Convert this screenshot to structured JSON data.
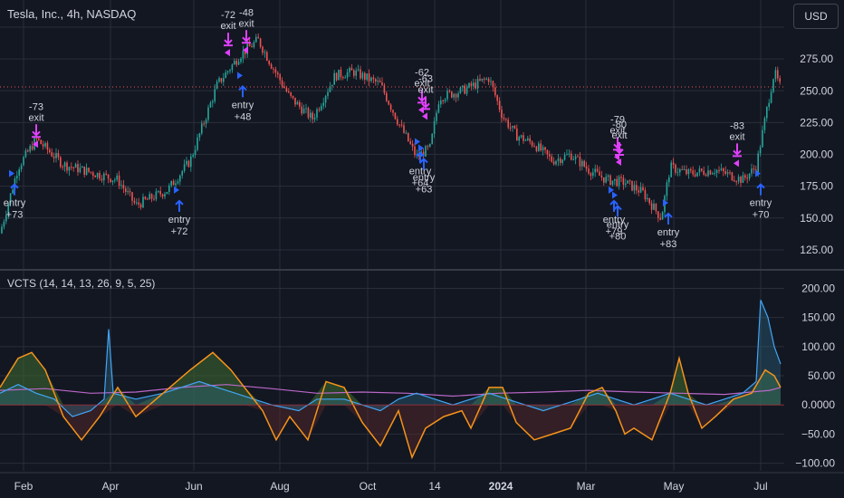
{
  "header": {
    "title": "Tesla, Inc., 4h, NASDAQ",
    "currency": "USD"
  },
  "indicator": {
    "title": "VCTS (14, 14, 13, 26, 9, 5, 25)"
  },
  "chart_data": [
    {
      "type": "candlestick",
      "ylim": [
        115,
        300
      ],
      "y_ticks": [
        125,
        150,
        175,
        200,
        225,
        250,
        275
      ],
      "current_price_line": 253,
      "x_ticks": [
        "Feb",
        "Apr",
        "Jun",
        "Aug",
        "Oct",
        "14",
        "2024",
        "Mar",
        "May",
        "Jul"
      ],
      "price_path": [
        [
          0,
          138
        ],
        [
          20,
          190
        ],
        [
          40,
          212
        ],
        [
          70,
          192
        ],
        [
          100,
          186
        ],
        [
          130,
          180
        ],
        [
          150,
          160
        ],
        [
          185,
          172
        ],
        [
          210,
          195
        ],
        [
          240,
          255
        ],
        [
          265,
          278
        ],
        [
          285,
          290
        ],
        [
          300,
          270
        ],
        [
          320,
          245
        ],
        [
          345,
          228
        ],
        [
          370,
          262
        ],
        [
          390,
          265
        ],
        [
          420,
          255
        ],
        [
          440,
          225
        ],
        [
          460,
          198
        ],
        [
          475,
          205
        ],
        [
          485,
          245
        ],
        [
          510,
          250
        ],
        [
          540,
          260
        ],
        [
          555,
          230
        ],
        [
          570,
          215
        ],
        [
          590,
          208
        ],
        [
          610,
          195
        ],
        [
          630,
          200
        ],
        [
          650,
          188
        ],
        [
          670,
          180
        ],
        [
          690,
          178
        ],
        [
          710,
          170
        ],
        [
          730,
          150
        ],
        [
          740,
          190
        ],
        [
          760,
          185
        ],
        [
          790,
          188
        ],
        [
          820,
          180
        ],
        [
          835,
          190
        ],
        [
          848,
          240
        ],
        [
          855,
          265
        ],
        [
          862,
          252
        ]
      ],
      "trades": [
        {
          "kind": "entry",
          "label": "+73",
          "x": 14,
          "price": 185
        },
        {
          "kind": "exit",
          "label": "-73",
          "x": 38,
          "price": 208
        },
        {
          "kind": "entry",
          "label": "+72",
          "x": 196,
          "price": 172
        },
        {
          "kind": "exit",
          "label": "-72",
          "x": 250,
          "price": 280
        },
        {
          "kind": "entry",
          "label": "+48",
          "x": 266,
          "price": 262
        },
        {
          "kind": "exit",
          "label": "-48",
          "x": 270,
          "price": 282
        },
        {
          "kind": "exit",
          "label": "-62",
          "x": 464,
          "price": 235
        },
        {
          "kind": "exit",
          "label": "-63",
          "x": 468,
          "price": 230
        },
        {
          "kind": "entry",
          "label": "+64",
          "x": 462,
          "price": 210
        },
        {
          "kind": "entry",
          "label": "+63",
          "x": 466,
          "price": 205
        },
        {
          "kind": "exit",
          "label": "-79",
          "x": 680,
          "price": 198
        },
        {
          "kind": "exit",
          "label": "-80",
          "x": 682,
          "price": 194
        },
        {
          "kind": "entry",
          "label": "+79",
          "x": 676,
          "price": 172
        },
        {
          "kind": "entry",
          "label": "+80",
          "x": 680,
          "price": 168
        },
        {
          "kind": "entry",
          "label": "+83",
          "x": 736,
          "price": 162
        },
        {
          "kind": "exit",
          "label": "-83",
          "x": 812,
          "price": 193
        },
        {
          "kind": "entry",
          "label": "+70",
          "x": 838,
          "price": 185
        }
      ]
    },
    {
      "type": "line",
      "name": "",
      "ylim": [
        -110,
        210
      ],
      "y_ticks": [
        200,
        150,
        100,
        50,
        0,
        -50,
        -100
      ],
      "y_tick_labels": [
        "200.00",
        "150.00",
        "100.00",
        "50.00",
        "0.0000",
        "−50.00",
        "−100.00"
      ],
      "orange_series": [
        [
          0,
          30
        ],
        [
          20,
          80
        ],
        [
          35,
          90
        ],
        [
          50,
          60
        ],
        [
          70,
          -20
        ],
        [
          90,
          -60
        ],
        [
          110,
          -20
        ],
        [
          130,
          30
        ],
        [
          150,
          -20
        ],
        [
          180,
          20
        ],
        [
          210,
          60
        ],
        [
          235,
          90
        ],
        [
          255,
          60
        ],
        [
          270,
          30
        ],
        [
          290,
          -10
        ],
        [
          305,
          -60
        ],
        [
          320,
          -20
        ],
        [
          340,
          -60
        ],
        [
          360,
          40
        ],
        [
          380,
          30
        ],
        [
          400,
          -30
        ],
        [
          420,
          -70
        ],
        [
          440,
          -10
        ],
        [
          455,
          -90
        ],
        [
          470,
          -40
        ],
        [
          490,
          -20
        ],
        [
          510,
          -10
        ],
        [
          520,
          -40
        ],
        [
          540,
          30
        ],
        [
          555,
          30
        ],
        [
          570,
          -30
        ],
        [
          590,
          -60
        ],
        [
          610,
          -50
        ],
        [
          630,
          -40
        ],
        [
          650,
          20
        ],
        [
          665,
          30
        ],
        [
          680,
          -10
        ],
        [
          690,
          -50
        ],
        [
          700,
          -40
        ],
        [
          720,
          -60
        ],
        [
          740,
          20
        ],
        [
          750,
          80
        ],
        [
          760,
          20
        ],
        [
          775,
          -40
        ],
        [
          790,
          -20
        ],
        [
          810,
          10
        ],
        [
          830,
          20
        ],
        [
          845,
          60
        ],
        [
          855,
          50
        ],
        [
          862,
          30
        ]
      ],
      "teal_series": [
        [
          0,
          20
        ],
        [
          20,
          35
        ],
        [
          40,
          20
        ],
        [
          60,
          10
        ],
        [
          80,
          -20
        ],
        [
          100,
          -10
        ],
        [
          115,
          10
        ],
        [
          120,
          130
        ],
        [
          125,
          20
        ],
        [
          150,
          10
        ],
        [
          180,
          20
        ],
        [
          200,
          30
        ],
        [
          220,
          40
        ],
        [
          240,
          30
        ],
        [
          260,
          20
        ],
        [
          280,
          10
        ],
        [
          300,
          0
        ],
        [
          330,
          -10
        ],
        [
          350,
          10
        ],
        [
          380,
          10
        ],
        [
          400,
          0
        ],
        [
          420,
          -10
        ],
        [
          440,
          10
        ],
        [
          460,
          20
        ],
        [
          480,
          10
        ],
        [
          500,
          0
        ],
        [
          520,
          10
        ],
        [
          540,
          20
        ],
        [
          560,
          10
        ],
        [
          580,
          0
        ],
        [
          600,
          -10
        ],
        [
          620,
          0
        ],
        [
          640,
          10
        ],
        [
          660,
          20
        ],
        [
          680,
          10
        ],
        [
          700,
          0
        ],
        [
          720,
          10
        ],
        [
          740,
          20
        ],
        [
          760,
          10
        ],
        [
          780,
          0
        ],
        [
          800,
          10
        ],
        [
          820,
          20
        ],
        [
          835,
          40
        ],
        [
          840,
          180
        ],
        [
          848,
          150
        ],
        [
          855,
          100
        ],
        [
          862,
          70
        ]
      ],
      "purple_series": [
        [
          0,
          25
        ],
        [
          50,
          28
        ],
        [
          100,
          20
        ],
        [
          150,
          22
        ],
        [
          200,
          30
        ],
        [
          250,
          35
        ],
        [
          300,
          28
        ],
        [
          350,
          20
        ],
        [
          400,
          22
        ],
        [
          450,
          20
        ],
        [
          500,
          15
        ],
        [
          550,
          20
        ],
        [
          600,
          22
        ],
        [
          650,
          25
        ],
        [
          700,
          22
        ],
        [
          750,
          20
        ],
        [
          800,
          18
        ],
        [
          850,
          25
        ],
        [
          862,
          30
        ]
      ]
    }
  ],
  "colors": {
    "background": "#131722",
    "grid": "#2a2e39",
    "up_candle": "#26a69a",
    "down_candle": "#ef5350",
    "entry_marker": "#2962ff",
    "exit_marker": "#e040fb",
    "orange_line": "#f7931a",
    "teal_line": "#42a5f5",
    "purple_line": "#ba68c8",
    "area_fill": "#3e6b30",
    "current_price": "#ef5350",
    "text": "#d1d4dc"
  }
}
